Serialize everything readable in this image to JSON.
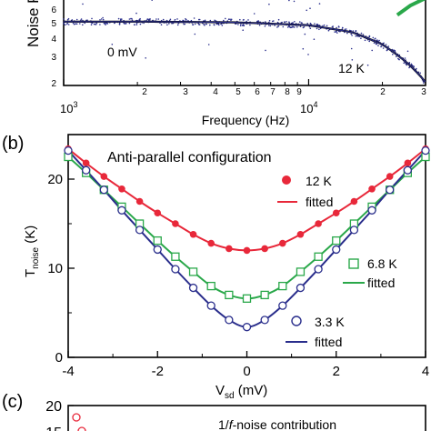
{
  "panel_a": {
    "y_title": "Noise Po",
    "x_title": "Frequency (Hz)",
    "y_tick_labels": [
      "6",
      "5",
      "4",
      "3",
      "2"
    ],
    "x_tick_labels": [
      "2",
      "3",
      "4",
      "5",
      "6",
      "7",
      "8",
      "9",
      "2",
      "3"
    ],
    "decade_label_1": "10",
    "decade_label_1_exp": "3",
    "decade_label_2": "10",
    "decade_label_2_exp": "4",
    "bias_label": "0 mV",
    "temp_label": "12 K"
  },
  "panel_b": {
    "panel_letter": "(b)",
    "title": "Anti-parallel configuration",
    "y_title_main": "T",
    "y_title_sub": "noise",
    "y_title_unit": " (K)",
    "x_title_main": "V",
    "x_title_sub": "sd",
    "x_title_unit": " (mV)",
    "x_tick_labels": [
      "-4",
      "-2",
      "0",
      "2",
      "4"
    ],
    "y_tick_labels": [
      "0",
      "10",
      "20"
    ],
    "legend": [
      {
        "label": "12 K",
        "fit_label": "fitted"
      },
      {
        "label": "6.8 K",
        "fit_label": "fitted"
      },
      {
        "label": "3.3 K",
        "fit_label": "fitted"
      }
    ]
  },
  "panel_c": {
    "panel_letter": "(c)",
    "y_tick_labels": [
      "20",
      "15"
    ],
    "inset_title": "1/f-noise contribution",
    "inset_title_italic": "f"
  },
  "colors": {
    "red": "#e8283a",
    "green": "#2aa84a",
    "navy": "#2a2e8c",
    "axis": "#000000"
  },
  "chart_data": [
    {
      "type": "scatter",
      "panel": "a",
      "x_scale": "log",
      "y_scale": "log",
      "xlim": [
        1000,
        30000
      ],
      "ylim": [
        2,
        7
      ],
      "annotations": [
        "0 mV",
        "12 K"
      ],
      "series": [
        {
          "color": "navy",
          "x": [
            1000,
            2000,
            5000,
            10000,
            15000,
            20000,
            25000,
            30000
          ],
          "y": [
            5.0,
            5.0,
            4.95,
            4.75,
            4.3,
            3.6,
            2.8,
            2.1
          ]
        },
        {
          "color": "green",
          "x": [
            23000,
            26000,
            30000
          ],
          "y": [
            5.5,
            6.3,
            7.0
          ]
        }
      ]
    },
    {
      "type": "scatter",
      "panel": "b",
      "title": "Anti-parallel configuration",
      "xlabel": "Vsd (mV)",
      "ylabel": "Tnoise (K)",
      "xlim": [
        -4,
        4
      ],
      "ylim": [
        0,
        25
      ],
      "legend_position": "right",
      "series": [
        {
          "name": "12 K",
          "color": "red",
          "marker": "filled-circle",
          "x": [
            -4,
            -3.6,
            -3.2,
            -2.8,
            -2.4,
            -2.0,
            -1.6,
            -1.2,
            -0.8,
            -0.4,
            0,
            0.4,
            0.8,
            1.2,
            1.6,
            2.0,
            2.4,
            2.8,
            3.2,
            3.6,
            4
          ],
          "y": [
            23.4,
            21.8,
            20.3,
            18.9,
            17.5,
            16.2,
            15.0,
            13.8,
            12.8,
            12.2,
            12.0,
            12.2,
            12.8,
            13.8,
            15.0,
            16.2,
            17.5,
            18.9,
            20.3,
            21.8,
            23.4
          ]
        },
        {
          "name": "6.8 K",
          "color": "green",
          "marker": "open-square",
          "x": [
            -4,
            -3.6,
            -3.2,
            -2.8,
            -2.4,
            -2.0,
            -1.6,
            -1.2,
            -0.8,
            -0.4,
            0,
            0.4,
            0.8,
            1.2,
            1.6,
            2.0,
            2.4,
            2.8,
            3.2,
            3.6,
            4
          ],
          "y": [
            22.5,
            20.7,
            18.8,
            16.9,
            15.0,
            13.1,
            11.3,
            9.6,
            8.0,
            7.0,
            6.6,
            7.0,
            8.0,
            9.6,
            11.3,
            13.1,
            15.0,
            16.9,
            18.8,
            20.7,
            22.5
          ]
        },
        {
          "name": "3.3 K",
          "color": "navy",
          "marker": "open-circle",
          "x": [
            -4,
            -3.6,
            -3.2,
            -2.8,
            -2.4,
            -2.0,
            -1.6,
            -1.2,
            -0.8,
            -0.4,
            0,
            0.4,
            0.8,
            1.2,
            1.6,
            2.0,
            2.4,
            2.8,
            3.2,
            3.6,
            4
          ],
          "y": [
            23.2,
            21.0,
            18.8,
            16.5,
            14.3,
            12.1,
            9.9,
            7.8,
            5.8,
            4.2,
            3.4,
            4.2,
            5.8,
            7.8,
            9.9,
            12.1,
            14.3,
            16.5,
            18.8,
            21.0,
            23.2
          ]
        }
      ]
    },
    {
      "type": "scatter",
      "panel": "c",
      "title": "1/f-noise contribution",
      "ylim": [
        15,
        20
      ],
      "series": [
        {
          "color": "red",
          "marker": "open-circle",
          "x": [
            -4,
            -3.9
          ],
          "y": [
            18,
            16
          ]
        }
      ]
    }
  ]
}
